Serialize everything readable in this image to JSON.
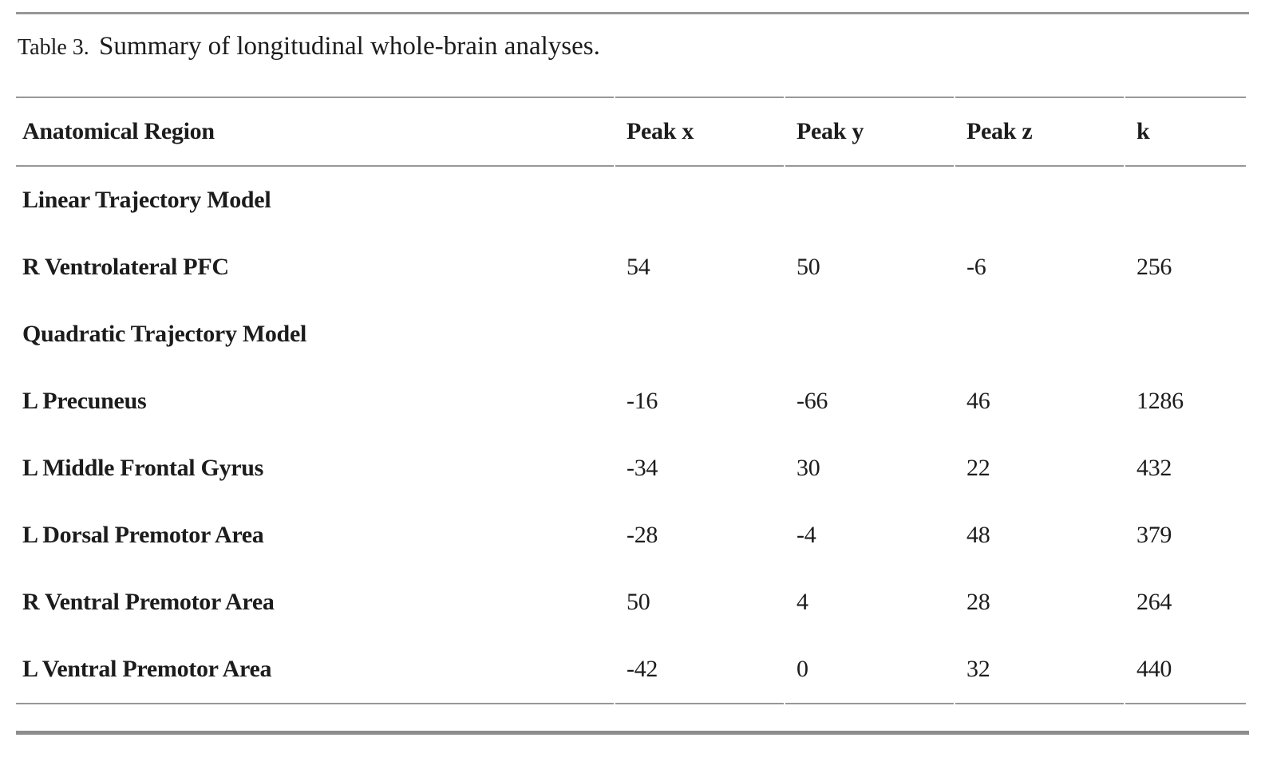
{
  "caption": {
    "label": "Table 3.",
    "title": "Summary of longitudinal whole-brain analyses."
  },
  "table": {
    "columns": [
      "Anatomical Region",
      "Peak x",
      "Peak y",
      "Peak z",
      "k"
    ],
    "rows": [
      [
        "Linear Trajectory Model",
        "",
        "",
        "",
        ""
      ],
      [
        "R Ventrolateral PFC",
        "54",
        "50",
        "-6",
        "256"
      ],
      [
        "Quadratic Trajectory Model",
        "",
        "",
        "",
        ""
      ],
      [
        "L Precuneus",
        "-16",
        "-66",
        "46",
        "1286"
      ],
      [
        "L Middle Frontal Gyrus",
        "-34",
        "30",
        "22",
        "432"
      ],
      [
        "L Dorsal Premotor Area",
        "-28",
        "-4",
        "48",
        "379"
      ],
      [
        "R Ventral Premotor Area",
        "50",
        "4",
        "28",
        "264"
      ],
      [
        "L Ventral Premotor Area",
        "-42",
        "0",
        "32",
        "440"
      ]
    ]
  },
  "colors": {
    "rule_thin": "#979797",
    "rule_heavy": "#8d8d8d",
    "text": "#1c1c1c",
    "background": "#ffffff"
  }
}
